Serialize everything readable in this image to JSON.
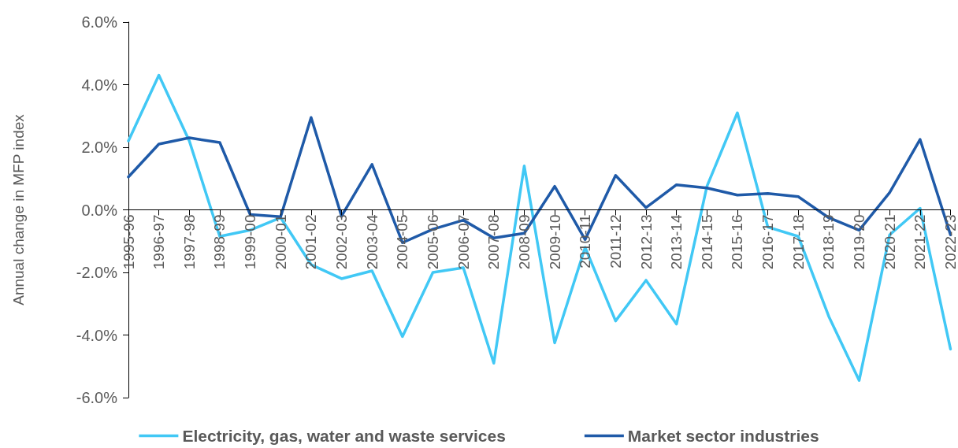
{
  "chart_data": {
    "type": "line",
    "ylabel": "Annual change in MFP index",
    "categories": [
      "1995-96",
      "1996-97",
      "1997-98",
      "1998-99",
      "1999-00",
      "2000-01",
      "2001-02",
      "2002-03",
      "2003-04",
      "2004-05",
      "2005-06",
      "2006-07",
      "2007-08",
      "2008-09",
      "2009-10",
      "2010-11",
      "2011-12",
      "2012-13",
      "2013-14",
      "2014-15",
      "2015-16",
      "2016-17",
      "2017-18",
      "2018-19",
      "2019-20",
      "2020-21",
      "2021-22",
      "2022-23"
    ],
    "series": [
      {
        "name": "Electricity, gas, water and waste services",
        "color": "#41c8f5",
        "values": [
          2.2,
          4.3,
          2.2,
          -0.85,
          -0.65,
          -0.25,
          -1.75,
          -2.2,
          -1.95,
          -4.05,
          -2.0,
          -1.85,
          -4.9,
          1.4,
          -4.25,
          -1.2,
          -3.55,
          -2.25,
          -3.65,
          0.75,
          3.1,
          -0.55,
          -0.85,
          -3.4,
          -5.45,
          -0.8,
          0.05,
          -4.45
        ]
      },
      {
        "name": "Market sector industries",
        "color": "#1f5aa8",
        "values": [
          1.05,
          2.1,
          2.3,
          2.15,
          -0.15,
          -0.22,
          2.95,
          -0.2,
          1.45,
          -1.05,
          -0.62,
          -0.33,
          -0.9,
          -0.75,
          0.75,
          -0.95,
          1.1,
          0.07,
          0.8,
          0.7,
          0.47,
          0.52,
          0.42,
          -0.25,
          -0.65,
          0.55,
          2.25,
          -0.8
        ]
      }
    ],
    "ylim": [
      -6,
      6
    ],
    "yticks": [
      {
        "value": -6,
        "label": "-6.0%"
      },
      {
        "value": -4,
        "label": "-4.0%"
      },
      {
        "value": -2,
        "label": "-2.0%"
      },
      {
        "value": 0,
        "label": "0.0%"
      },
      {
        "value": 2,
        "label": "2.0%"
      },
      {
        "value": 4,
        "label": "4.0%"
      },
      {
        "value": 6,
        "label": "6.0%"
      }
    ],
    "grid": false,
    "legend": "bottom",
    "marker": "none",
    "line_style": "solid"
  }
}
